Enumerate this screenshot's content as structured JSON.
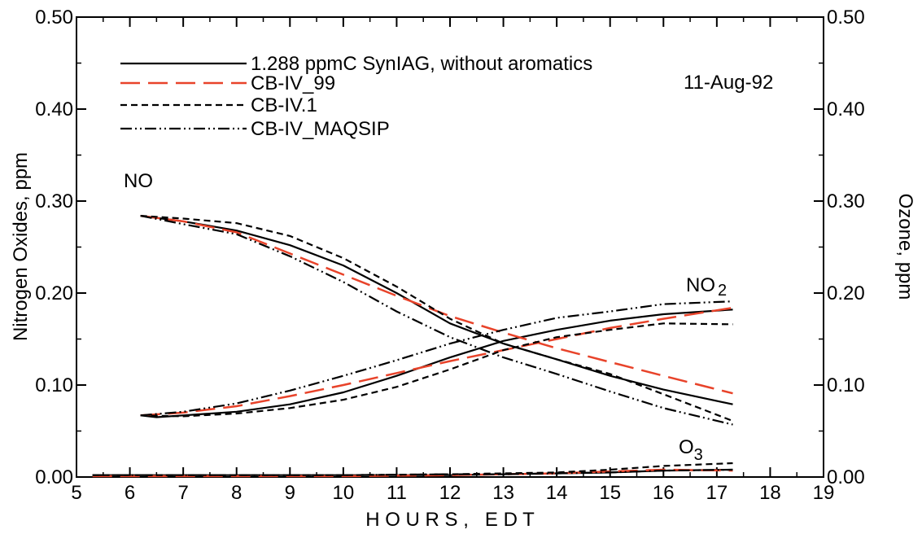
{
  "chart_data": {
    "type": "line",
    "title": "",
    "date_label": "11-Aug-92",
    "xlabel": "H O U R S ,   E D T",
    "ylabel_left": "Nitrogen Oxides, ppm",
    "ylabel_right": "Ozone, ppm",
    "xlim": [
      5,
      19
    ],
    "ylim": [
      0,
      0.5
    ],
    "xticks": [
      "5",
      "6",
      "7",
      "8",
      "9",
      "10",
      "11",
      "12",
      "13",
      "14",
      "15",
      "16",
      "17",
      "18",
      "19"
    ],
    "yticks": [
      "0.00",
      "0.10",
      "0.20",
      "0.30",
      "0.40",
      "0.50"
    ],
    "legend_position": "top-left",
    "annotations": {
      "no": "NO",
      "no2": "NO",
      "no2_sub": "2",
      "o3": "O",
      "o3_sub": "3"
    },
    "series": [
      {
        "name": "1.288 ppmC SynIAG, without aromatics",
        "color": "#000000",
        "dash": "solid",
        "NO": {
          "x": [
            6.2,
            7,
            8,
            9,
            10,
            11,
            12,
            13,
            14,
            15,
            16,
            17.3
          ],
          "y": [
            0.284,
            0.278,
            0.268,
            0.252,
            0.23,
            0.2,
            0.167,
            0.145,
            0.128,
            0.11,
            0.095,
            0.079
          ]
        },
        "NO2": {
          "x": [
            6.2,
            6.5,
            7,
            8,
            9,
            10,
            11,
            12,
            13,
            14,
            15,
            16,
            17.3
          ],
          "y": [
            0.067,
            0.065,
            0.067,
            0.071,
            0.079,
            0.092,
            0.11,
            0.13,
            0.148,
            0.16,
            0.17,
            0.177,
            0.182
          ]
        },
        "O3": {
          "x": [
            5.3,
            8,
            10,
            12,
            13,
            14,
            15,
            16,
            17.3
          ],
          "y": [
            0.002,
            0.002,
            0.002,
            0.002,
            0.003,
            0.004,
            0.005,
            0.007,
            0.008
          ]
        }
      },
      {
        "name": "CB-IV_99",
        "color": "#e8432a",
        "dash": "long-dash",
        "NO": {
          "x": [
            6.2,
            7,
            8,
            9,
            10,
            11,
            12,
            13,
            14,
            15,
            16,
            17.3
          ],
          "y": [
            0.284,
            0.278,
            0.266,
            0.243,
            0.22,
            0.197,
            0.175,
            0.157,
            0.14,
            0.125,
            0.11,
            0.091
          ]
        },
        "NO2": {
          "x": [
            6.2,
            7,
            8,
            9,
            10,
            11,
            12,
            13,
            14,
            15,
            16,
            17.3
          ],
          "y": [
            0.067,
            0.07,
            0.077,
            0.088,
            0.1,
            0.113,
            0.126,
            0.138,
            0.15,
            0.162,
            0.172,
            0.184
          ]
        },
        "O3": {
          "x": [
            5.3,
            8,
            10,
            12,
            13,
            14,
            15,
            16,
            17.3
          ],
          "y": [
            0.001,
            0.001,
            0.001,
            0.002,
            0.003,
            0.004,
            0.006,
            0.008,
            0.007
          ]
        }
      },
      {
        "name": "CB-IV.1",
        "color": "#000000",
        "dash": "short-dash",
        "NO": {
          "x": [
            6.2,
            7,
            8,
            9,
            10,
            11,
            12,
            13,
            14,
            15,
            16,
            17.3
          ],
          "y": [
            0.284,
            0.281,
            0.276,
            0.262,
            0.238,
            0.207,
            0.172,
            0.145,
            0.128,
            0.112,
            0.09,
            0.061
          ]
        },
        "NO2": {
          "x": [
            6.2,
            7,
            8,
            9,
            10,
            11,
            12,
            13,
            14,
            15,
            16,
            17.3
          ],
          "y": [
            0.067,
            0.066,
            0.069,
            0.075,
            0.084,
            0.098,
            0.117,
            0.138,
            0.152,
            0.16,
            0.167,
            0.166
          ]
        },
        "O3": {
          "x": [
            5.3,
            8,
            10,
            12,
            13,
            14,
            15,
            16,
            17.3
          ],
          "y": [
            0.002,
            0.002,
            0.002,
            0.003,
            0.004,
            0.005,
            0.008,
            0.012,
            0.015
          ]
        }
      },
      {
        "name": "CB-IV_MAQSIP",
        "color": "#000000",
        "dash": "dash-dot-dot",
        "NO": {
          "x": [
            6.2,
            7,
            8,
            9,
            10,
            11,
            12,
            13,
            14,
            15,
            16,
            17.3
          ],
          "y": [
            0.284,
            0.275,
            0.264,
            0.24,
            0.212,
            0.18,
            0.152,
            0.13,
            0.112,
            0.093,
            0.075,
            0.057
          ]
        },
        "NO2": {
          "x": [
            6.2,
            7,
            8,
            9,
            10,
            11,
            12,
            13,
            14,
            15,
            16,
            17.3
          ],
          "y": [
            0.067,
            0.071,
            0.08,
            0.094,
            0.11,
            0.127,
            0.145,
            0.16,
            0.173,
            0.18,
            0.188,
            0.191
          ]
        },
        "O3": {
          "x": [
            5.3,
            8,
            10,
            12,
            13,
            14,
            15,
            16,
            17.3
          ],
          "y": [
            0.002,
            0.002,
            0.002,
            0.003,
            0.003,
            0.004,
            0.005,
            0.007,
            0.008
          ]
        }
      }
    ]
  }
}
